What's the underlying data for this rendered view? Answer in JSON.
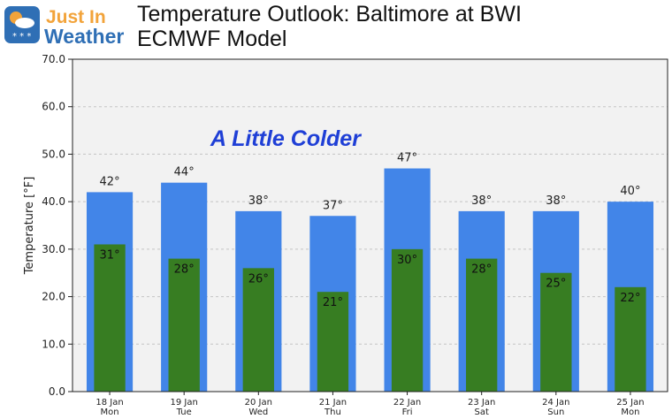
{
  "logo": {
    "line1": "Just In",
    "line2": "Weather",
    "icon": "snow-rain-weather-icon"
  },
  "header": {
    "title_line1": "Temperature Outlook: Baltimore at BWI",
    "title_line2": "ECMWF Model"
  },
  "colors": {
    "high_bar": "#4285e8",
    "low_bar": "#377d22",
    "annotation": "#1f3fd6",
    "plot_bg": "#f2f2f2",
    "logo_blue": "#2f6fb5",
    "logo_orange": "#f2a33a"
  },
  "chart_data": {
    "type": "bar",
    "annotation": "A Little Colder",
    "ylabel": "Temperature [°F]",
    "ylim": [
      0,
      70
    ],
    "yticks": [
      0,
      10,
      20,
      30,
      40,
      50,
      60,
      70
    ],
    "grid": true,
    "categories": [
      "18 Jan\nMon",
      "19 Jan\nTue",
      "20 Jan\nWed",
      "21 Jan\nThu",
      "22 Jan\nFri",
      "23 Jan\nSat",
      "24 Jan\nSun",
      "25 Jan\nMon"
    ],
    "series": [
      {
        "values": [
          42,
          44,
          38,
          37,
          47,
          38,
          38,
          40
        ]
      },
      {
        "values": [
          31,
          28,
          26,
          21,
          30,
          28,
          25,
          22
        ]
      }
    ],
    "value_labels": {
      "high": [
        "42°",
        "44°",
        "38°",
        "37°",
        "47°",
        "38°",
        "38°",
        "40°"
      ],
      "low": [
        "31°",
        "28°",
        "26°",
        "21°",
        "30°",
        "28°",
        "25°",
        "22°"
      ]
    }
  }
}
